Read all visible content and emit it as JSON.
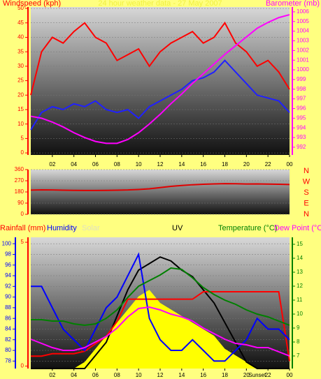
{
  "chart_data": [
    {
      "type": "line",
      "title": "24 hour weather data - 27 May 2007",
      "ylabel": "Windspeed (kph)",
      "y2label": "Barometer (mb)",
      "x": [
        0,
        1,
        2,
        3,
        4,
        5,
        6,
        7,
        8,
        9,
        10,
        11,
        12,
        13,
        14,
        15,
        16,
        17,
        18,
        19,
        20,
        21,
        22,
        23,
        24
      ],
      "xlim": [
        0,
        24
      ],
      "xticks": [
        {
          "value": 2,
          "label": "02"
        },
        {
          "value": 4,
          "label": "04"
        },
        {
          "value": 6,
          "label": "06"
        },
        {
          "value": 8,
          "label": "08"
        },
        10,
        12,
        14,
        16,
        18,
        20,
        22,
        {
          "value": 24,
          "label": "00"
        }
      ],
      "ylim": [
        -0.7,
        50.5
      ],
      "yticks": [
        0,
        5,
        10,
        15,
        20,
        25,
        30,
        35,
        40,
        45,
        50
      ],
      "y2lim": [
        991.2,
        1006.5
      ],
      "y2ticks": [
        992,
        993,
        994,
        995,
        996,
        997,
        998,
        999,
        1000,
        1001,
        1002,
        1003,
        1004,
        1005,
        1006
      ],
      "series": [
        {
          "color": "#ff0000",
          "values": [
            20,
            35,
            40,
            38,
            42,
            45,
            40,
            38,
            32,
            34,
            36,
            30,
            35,
            38,
            40,
            42,
            38,
            40,
            45,
            38,
            35,
            30,
            32,
            28,
            22
          ]
        },
        {
          "color": "#2020ff",
          "values": [
            8,
            14,
            16,
            15,
            17,
            16,
            18,
            15,
            14,
            15,
            12,
            16,
            18,
            20,
            22,
            25,
            26,
            28,
            32,
            28,
            24,
            20,
            19,
            18,
            14
          ]
        },
        {
          "color": "#ff00ff",
          "axis": "y2",
          "values": [
            995.2,
            995,
            994.6,
            994.1,
            993.5,
            993.0,
            992.6,
            992.4,
            992.4,
            992.8,
            993.5,
            994.4,
            995.4,
            996.5,
            997.5,
            998.6,
            999.6,
            1000.6,
            1001.6,
            1002.5,
            1003.4,
            1004.3,
            1004.9,
            1005.4,
            1005.7
          ]
        }
      ]
    },
    {
      "type": "line",
      "x": [
        0,
        1,
        2,
        3,
        4,
        5,
        6,
        7,
        8,
        9,
        10,
        11,
        12,
        13,
        14,
        15,
        16,
        17,
        18,
        19,
        20,
        21,
        22,
        23,
        24
      ],
      "xlim": [
        0,
        24
      ],
      "ylim": [
        0,
        360
      ],
      "yticks": [
        0,
        90,
        180,
        270,
        360
      ],
      "direction_labels": [
        "N",
        "W",
        "S",
        "E",
        "N"
      ],
      "series": [
        {
          "color": "#e00000",
          "values": [
            195,
            197,
            196,
            194,
            193,
            192,
            192,
            193,
            194,
            196,
            200,
            205,
            215,
            225,
            232,
            238,
            242,
            245,
            247,
            246,
            244,
            245,
            243,
            242,
            240
          ]
        }
      ]
    },
    {
      "type": "line",
      "x": [
        0,
        1,
        2,
        3,
        4,
        5,
        6,
        7,
        8,
        9,
        10,
        11,
        12,
        13,
        14,
        15,
        16,
        17,
        18,
        19,
        20,
        21,
        22,
        23,
        24
      ],
      "xlim": [
        0,
        24
      ],
      "xticks": [
        {
          "value": 2,
          "label": "02"
        },
        {
          "value": 4,
          "label": "04"
        },
        {
          "value": 6,
          "label": "06"
        },
        {
          "value": 8,
          "label": "08"
        },
        10,
        12,
        14,
        16,
        18,
        20,
        22,
        {
          "value": 24,
          "label": "00"
        }
      ],
      "annotation": "Sunset",
      "annotation_x": 21,
      "ylim": [
        76.6,
        101.2
      ],
      "yticks": [
        78,
        80,
        82,
        84,
        86,
        88,
        90,
        92,
        94,
        96,
        98,
        100
      ],
      "y2lim": [
        6.1,
        15.5
      ],
      "y2ticks": [
        7,
        8,
        9,
        10,
        11,
        12,
        13,
        14,
        15
      ],
      "y3lim": [
        -0.1,
        5.2
      ],
      "y3ticks": [
        0,
        5
      ],
      "y4lim": [
        0,
        100
      ],
      "series": [
        {
          "name": "Solar",
          "color": "#ffff00",
          "axis": "y4",
          "values": [
            0,
            0,
            0,
            0,
            0,
            5,
            15,
            25,
            35,
            45,
            55,
            60,
            50,
            45,
            40,
            35,
            30,
            25,
            15,
            10,
            5,
            0,
            0,
            0,
            0
          ]
        },
        {
          "name": "UV",
          "color": "#000000",
          "axis": "y4",
          "values": [
            0,
            0,
            0,
            0,
            0,
            0,
            10,
            20,
            40,
            60,
            75,
            80,
            85,
            82,
            75,
            70,
            60,
            50,
            35,
            20,
            5,
            0,
            0,
            0,
            0
          ]
        },
        {
          "name": "Rainfall (mm)",
          "color": "#ff0000",
          "axis": "y3",
          "values": [
            0.4,
            0.4,
            0.5,
            0.5,
            0.5,
            0.6,
            0.9,
            1.2,
            1.8,
            2.7,
            2.7,
            2.7,
            2.7,
            2.7,
            2.7,
            2.7,
            3.0,
            3.0,
            3.0,
            3.0,
            3.0,
            3.0,
            3.0,
            3.0,
            0.2
          ]
        },
        {
          "name": "Humidity",
          "color": "#0000ff",
          "values": [
            92,
            92,
            88,
            84,
            82,
            80,
            84,
            88,
            90,
            94,
            98,
            86,
            82,
            80,
            80,
            82,
            80,
            78,
            78,
            80,
            82,
            86,
            84,
            84,
            82
          ]
        },
        {
          "name": "Temperature (°C)",
          "color": "#008000",
          "axis": "y2",
          "values": [
            9.6,
            9.6,
            9.5,
            9.5,
            9.3,
            9.2,
            9.3,
            9.7,
            10.3,
            11.2,
            12.0,
            12.4,
            12.8,
            13.3,
            13.2,
            12.6,
            11.9,
            11.4,
            11.0,
            10.7,
            10.3,
            10.0,
            9.8,
            9.5,
            9.2
          ]
        },
        {
          "name": "Dew Point (°C",
          "color": "#ff00ff",
          "axis": "y2",
          "values": [
            8.2,
            7.9,
            7.6,
            7.4,
            7.4,
            7.6,
            8.0,
            8.4,
            9.0,
            9.8,
            10.4,
            10.5,
            10.3,
            10.0,
            9.8,
            9.5,
            9.0,
            8.6,
            8.2,
            7.9,
            7.8,
            7.6,
            7.6,
            7.3,
            7.0
          ]
        }
      ]
    }
  ]
}
